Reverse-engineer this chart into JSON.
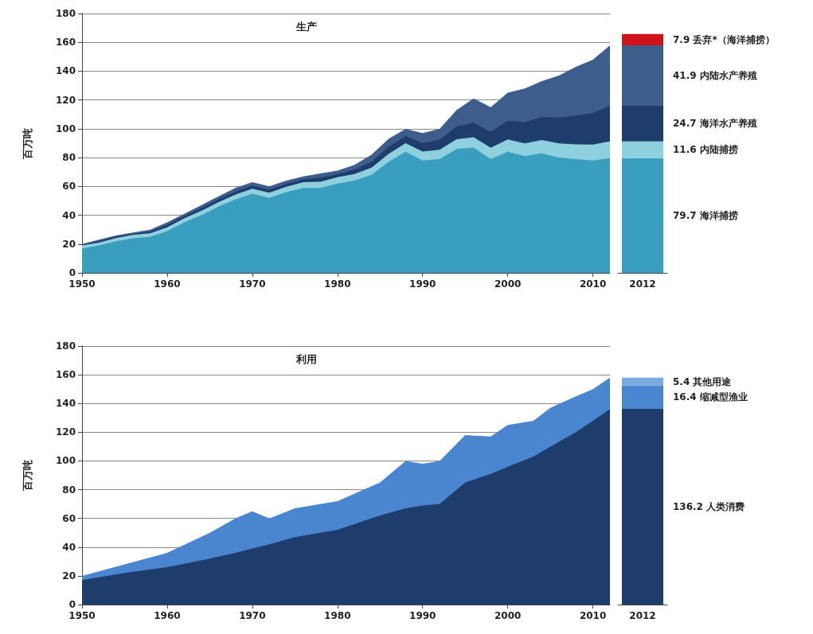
{
  "chart_data": [
    {
      "type": "area",
      "stacked": true,
      "title": "生产",
      "ylabel": "百万吨",
      "xlim": [
        1950,
        2012
      ],
      "xticks": [
        1950,
        1960,
        1970,
        1980,
        1990,
        2000,
        2010
      ],
      "ylim": [
        0,
        180
      ],
      "yticks": [
        0,
        20,
        40,
        60,
        80,
        100,
        120,
        140,
        160,
        180
      ],
      "grid": "y",
      "legend": false,
      "x": [
        1950,
        1952,
        1954,
        1956,
        1958,
        1960,
        1962,
        1964,
        1966,
        1968,
        1970,
        1972,
        1974,
        1976,
        1978,
        1980,
        1982,
        1984,
        1986,
        1988,
        1990,
        1992,
        1994,
        1996,
        1998,
        2000,
        2002,
        2004,
        2006,
        2008,
        2010,
        2012
      ],
      "series": [
        {
          "color": "#3a9fbf",
          "values": [
            17,
            19,
            22,
            24,
            25,
            29,
            35,
            40,
            46,
            51,
            55,
            52,
            56,
            59,
            59,
            62,
            64,
            68,
            77,
            84,
            78,
            79,
            86,
            87,
            79,
            84,
            81,
            83,
            80,
            79,
            78,
            79.7
          ]
        },
        {
          "color": "#8fd0df",
          "values": [
            2,
            2,
            2.2,
            2.3,
            2.5,
            2.6,
            2.8,
            3,
            3,
            3.2,
            3.4,
            3.6,
            3.8,
            4,
            4.2,
            4.4,
            4.6,
            5,
            5.5,
            6,
            6.2,
            6.4,
            6.8,
            7.2,
            7.8,
            8.6,
            8.8,
            9.2,
            9.8,
            10.2,
            11,
            11.6
          ]
        },
        {
          "color": "#1f3d6c",
          "values": [
            0.5,
            1,
            0.9,
            0.8,
            1.2,
            1.6,
            1.5,
            2,
            2,
            2.3,
            2.2,
            2.1,
            2,
            2,
            2.8,
            2.2,
            3,
            4,
            5,
            5,
            6,
            7,
            9,
            10,
            11,
            13,
            15,
            16,
            18,
            20,
            22,
            24.7
          ]
        },
        {
          "color": "#3d5e8c",
          "values": [
            0.5,
            1,
            0.9,
            0.9,
            1.3,
            1.8,
            1.7,
            2,
            2,
            2.5,
            2.4,
            2.3,
            2.2,
            2,
            3,
            2.4,
            3.4,
            5,
            5.5,
            5,
            6.8,
            7.6,
            11.2,
            16.8,
            17.2,
            19.4,
            23.2,
            24.8,
            29.2,
            33.8,
            37,
            41.9
          ]
        }
      ]
    },
    {
      "type": "bar",
      "stacked": true,
      "categories": [
        "2012"
      ],
      "ylim": [
        0,
        180
      ],
      "tick_labels": "x",
      "grid": false,
      "legend": false,
      "series": [
        {
          "name": "79.7 海洋捕捞",
          "color": "#3a9fbf",
          "values": [
            79.7
          ]
        },
        {
          "name": "11.6 内陆捕捞",
          "color": "#8fd0df",
          "values": [
            11.6
          ]
        },
        {
          "name": "24.7 海洋水产养殖",
          "color": "#1f3d6c",
          "values": [
            24.7
          ]
        },
        {
          "name": "41.9 内陆水产养殖",
          "color": "#3d5e8c",
          "values": [
            41.9
          ]
        },
        {
          "name": "7.9 丢弃*（海洋捕捞）",
          "color": "#d0121b",
          "values": [
            7.9
          ]
        }
      ]
    },
    {
      "type": "area",
      "stacked": true,
      "title": "利用",
      "ylabel": "百万吨",
      "xlim": [
        1950,
        2012
      ],
      "xticks": [
        1950,
        1960,
        1970,
        1980,
        1990,
        2000,
        2010
      ],
      "ylim": [
        0,
        180
      ],
      "yticks": [
        0,
        20,
        40,
        60,
        80,
        100,
        120,
        140,
        160,
        180
      ],
      "grid": "y",
      "legend": false,
      "x": [
        1950,
        1955,
        1960,
        1965,
        1968,
        1970,
        1972,
        1975,
        1980,
        1985,
        1988,
        1990,
        1992,
        1995,
        1998,
        2000,
        2003,
        2005,
        2008,
        2010,
        2012
      ],
      "series": [
        {
          "color": "#1f3d6c",
          "values": [
            17,
            22,
            26,
            32,
            36,
            39,
            42,
            47,
            52,
            62,
            67,
            69,
            70,
            85,
            91,
            96,
            103,
            110,
            120,
            128,
            136.2
          ]
        },
        {
          "color": "#4a86d0",
          "values": [
            3,
            6,
            10,
            18,
            24,
            26,
            18,
            20,
            20,
            23,
            33,
            29,
            30,
            33,
            26,
            29,
            25,
            27,
            25,
            22,
            21.8
          ]
        }
      ]
    },
    {
      "type": "bar",
      "stacked": true,
      "categories": [
        "2012"
      ],
      "ylim": [
        0,
        180
      ],
      "tick_labels": "x",
      "grid": false,
      "legend": false,
      "series": [
        {
          "name": "136.2 人类消费",
          "color": "#1f3d6c",
          "values": [
            136.2
          ]
        },
        {
          "name": "16.4 缩减型渔业",
          "color": "#4a86d0",
          "values": [
            16.4
          ]
        },
        {
          "name": "5.4 其他用途",
          "color": "#7aa9df",
          "values": [
            5.4
          ]
        }
      ]
    }
  ]
}
